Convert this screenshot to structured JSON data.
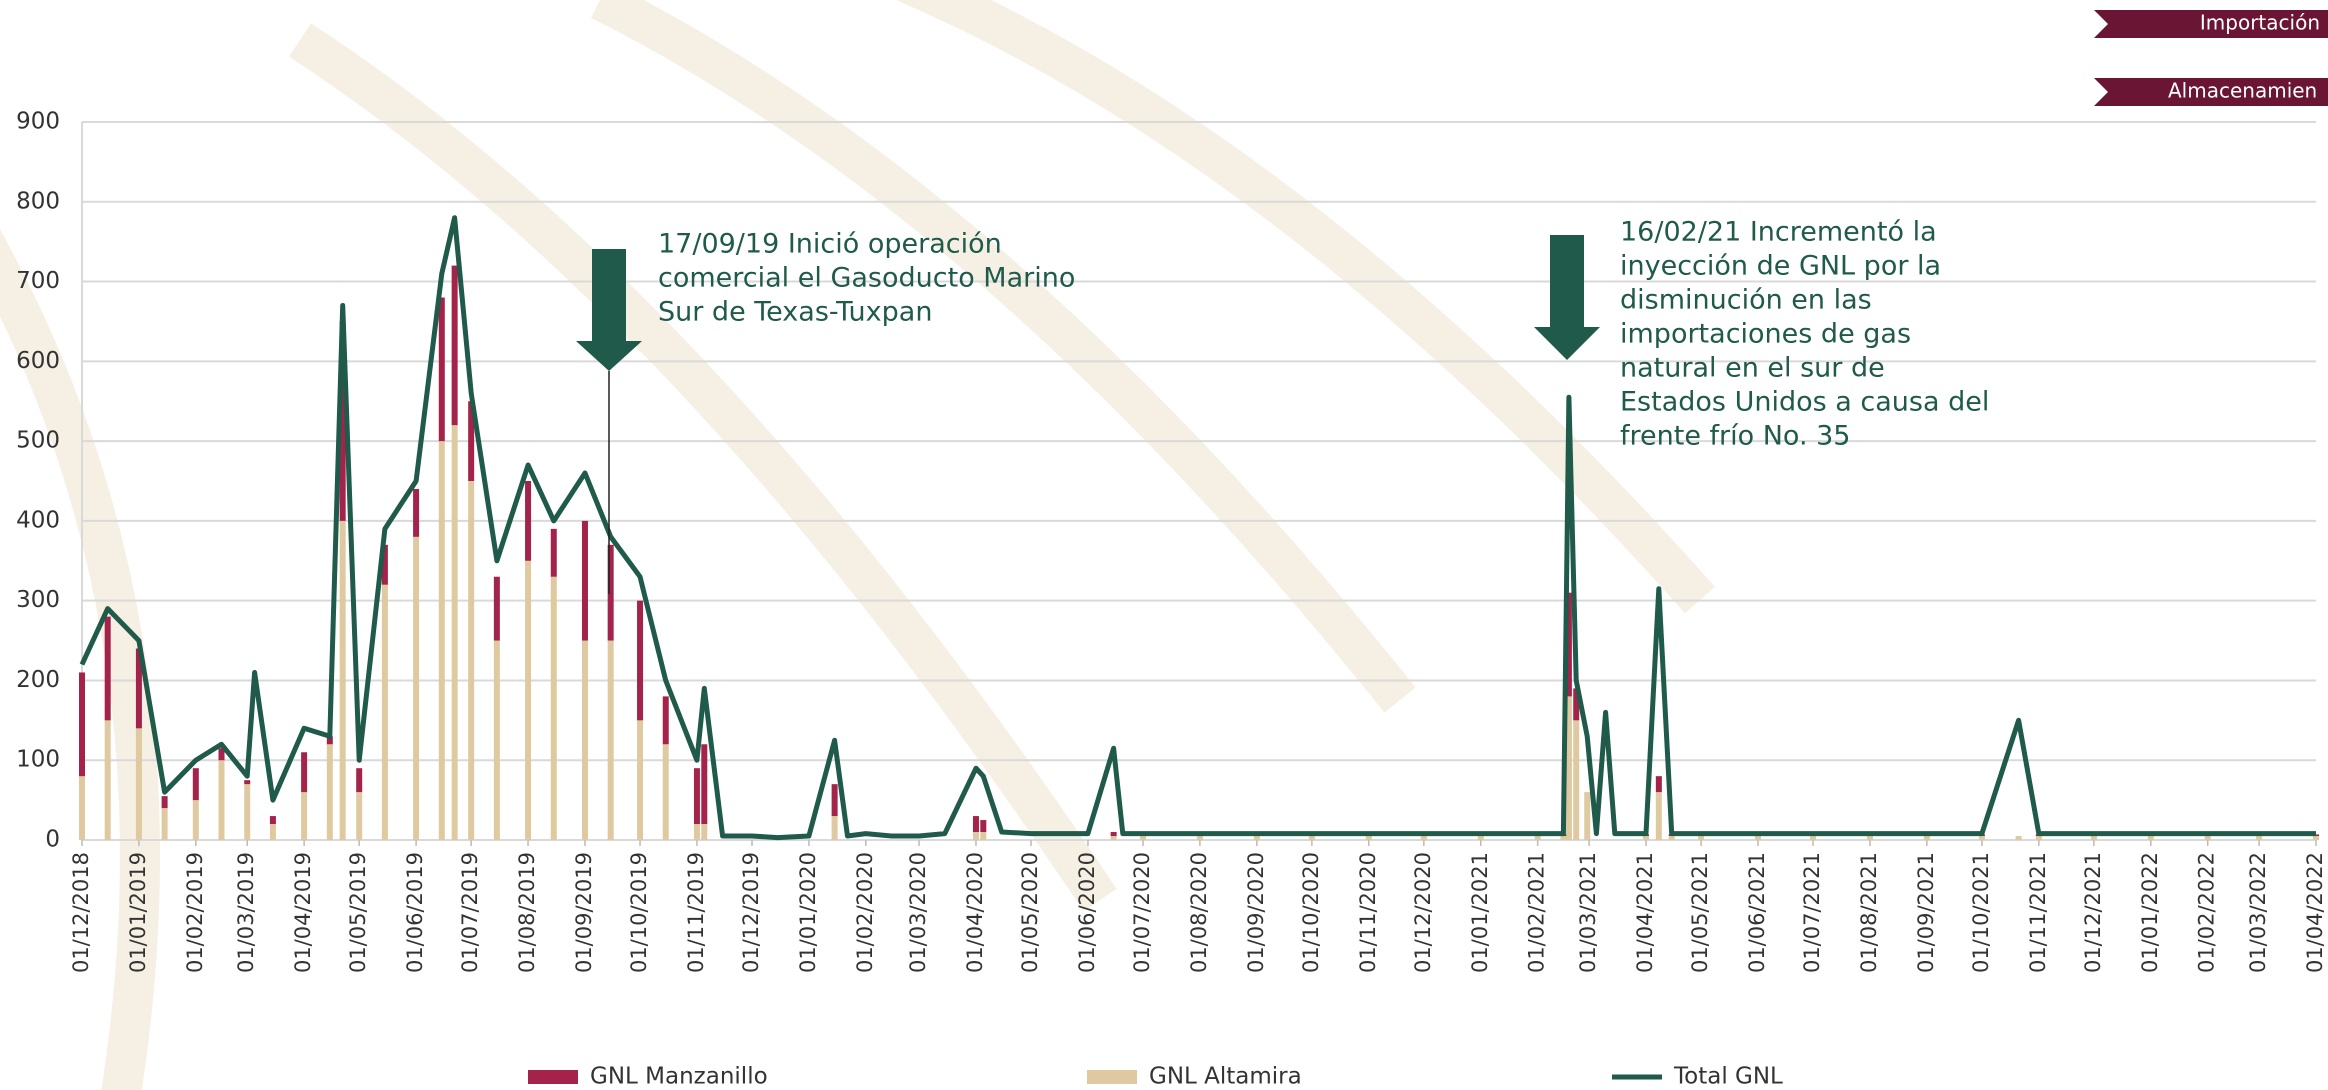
{
  "nav": [
    "Importación",
    "Almacenamien"
  ],
  "chart_data": {
    "type": "stacked_bar_line",
    "x": [
      "01/12/2018",
      "15/12/2018",
      "01/01/2019",
      "15/01/2019",
      "01/02/2019",
      "15/02/2019",
      "01/03/2019",
      "05/03/2019",
      "15/03/2019",
      "01/04/2019",
      "15/04/2019",
      "22/04/2019",
      "01/05/2019",
      "15/05/2019",
      "01/06/2019",
      "15/06/2019",
      "22/06/2019",
      "01/07/2019",
      "15/07/2019",
      "01/08/2019",
      "15/08/2019",
      "01/09/2019",
      "15/09/2019",
      "01/10/2019",
      "15/10/2019",
      "01/11/2019",
      "05/11/2019",
      "15/11/2019",
      "01/12/2019",
      "15/12/2019",
      "01/01/2020",
      "15/01/2020",
      "22/01/2020",
      "01/02/2020",
      "15/02/2020",
      "01/03/2020",
      "15/03/2020",
      "01/04/2020",
      "05/04/2020",
      "15/04/2020",
      "01/05/2020",
      "15/05/2020",
      "01/06/2020",
      "15/06/2020",
      "20/06/2020",
      "01/07/2020",
      "01/08/2020",
      "01/09/2020",
      "01/10/2020",
      "01/11/2020",
      "01/12/2020",
      "01/01/2021",
      "01/02/2021",
      "15/02/2021",
      "18/02/2021",
      "22/02/2021",
      "28/02/2021",
      "05/03/2021",
      "10/03/2021",
      "15/03/2021",
      "01/04/2021",
      "08/04/2021",
      "15/04/2021",
      "01/05/2021",
      "01/06/2021",
      "01/07/2021",
      "01/08/2021",
      "01/09/2021",
      "01/10/2021",
      "21/10/2021",
      "01/11/2021",
      "01/12/2021",
      "01/01/2022",
      "01/02/2022",
      "01/03/2022",
      "01/04/2022"
    ],
    "series": [
      {
        "name": "GNL Altamira",
        "color": "#dfc9a0",
        "kind": "bar",
        "values": [
          80,
          150,
          140,
          40,
          50,
          100,
          70,
          0,
          20,
          60,
          120,
          400,
          60,
          320,
          380,
          500,
          520,
          450,
          250,
          350,
          330,
          250,
          250,
          150,
          120,
          20,
          20,
          0,
          0,
          0,
          0,
          30,
          0,
          0,
          0,
          0,
          0,
          10,
          10,
          0,
          0,
          0,
          0,
          5,
          0,
          5,
          5,
          5,
          5,
          5,
          5,
          5,
          5,
          5,
          180,
          150,
          60,
          0,
          0,
          0,
          5,
          60,
          5,
          5,
          5,
          5,
          5,
          5,
          5,
          5,
          5,
          5,
          5,
          5,
          5,
          5
        ]
      },
      {
        "name": "GNL Manzanillo",
        "color": "#a3234a",
        "kind": "bar",
        "values": [
          130,
          130,
          100,
          15,
          40,
          15,
          5,
          0,
          10,
          50,
          10,
          250,
          30,
          50,
          60,
          180,
          200,
          100,
          80,
          100,
          60,
          150,
          120,
          150,
          60,
          70,
          100,
          0,
          0,
          0,
          0,
          40,
          0,
          0,
          0,
          0,
          0,
          20,
          15,
          0,
          0,
          0,
          0,
          5,
          0,
          2,
          2,
          2,
          2,
          2,
          2,
          2,
          2,
          2,
          130,
          40,
          0,
          0,
          0,
          0,
          2,
          20,
          2,
          2,
          2,
          2,
          2,
          2,
          2,
          0,
          2,
          2,
          2,
          2,
          2,
          2
        ]
      },
      {
        "name": "Total GNL",
        "color": "#1f5a4a",
        "kind": "line",
        "values": [
          220,
          290,
          250,
          60,
          100,
          120,
          80,
          210,
          50,
          140,
          130,
          670,
          100,
          390,
          450,
          710,
          780,
          560,
          350,
          470,
          400,
          460,
          380,
          330,
          200,
          100,
          190,
          5,
          5,
          3,
          5,
          125,
          5,
          8,
          5,
          5,
          8,
          90,
          80,
          10,
          8,
          8,
          8,
          115,
          8,
          8,
          8,
          8,
          8,
          8,
          8,
          8,
          8,
          8,
          555,
          200,
          130,
          8,
          160,
          8,
          8,
          315,
          8,
          8,
          8,
          8,
          8,
          8,
          8,
          150,
          8,
          8,
          8,
          8,
          8,
          8
        ]
      }
    ],
    "xlim": [
      "01/12/2018",
      "01/04/2022"
    ],
    "xticks": [
      "01/12/2018",
      "01/01/2019",
      "01/02/2019",
      "01/03/2019",
      "01/04/2019",
      "01/05/2019",
      "01/06/2019",
      "01/07/2019",
      "01/08/2019",
      "01/09/2019",
      "01/10/2019",
      "01/11/2019",
      "01/12/2019",
      "01/01/2020",
      "01/02/2020",
      "01/03/2020",
      "01/04/2020",
      "01/05/2020",
      "01/06/2020",
      "01/07/2020",
      "01/08/2020",
      "01/09/2020",
      "01/10/2020",
      "01/11/2020",
      "01/12/2020",
      "01/01/2021",
      "01/02/2021",
      "01/03/2021",
      "01/04/2021",
      "01/05/2021",
      "01/06/2021",
      "01/07/2021",
      "01/08/2021",
      "01/09/2021",
      "01/10/2021",
      "01/11/2021",
      "01/12/2021",
      "01/01/2022",
      "01/02/2022",
      "01/03/2022",
      "01/04/2022"
    ],
    "ylim": [
      0,
      900
    ],
    "yticks": [
      0,
      100,
      200,
      300,
      400,
      500,
      600,
      700,
      800,
      900
    ],
    "grid": true,
    "legend": "bottom",
    "annotations": [
      [
        "17/09/19 Inició operación",
        "comercial el Gasoducto Marino",
        "Sur de Texas-Tuxpan"
      ],
      [
        "16/02/21 Incrementó la",
        "inyección de GNL por la",
        "disminución en las",
        "importaciones de gas",
        "natural en el sur de",
        "Estados Unidos a causa del",
        "frente frío No. 35"
      ]
    ]
  }
}
